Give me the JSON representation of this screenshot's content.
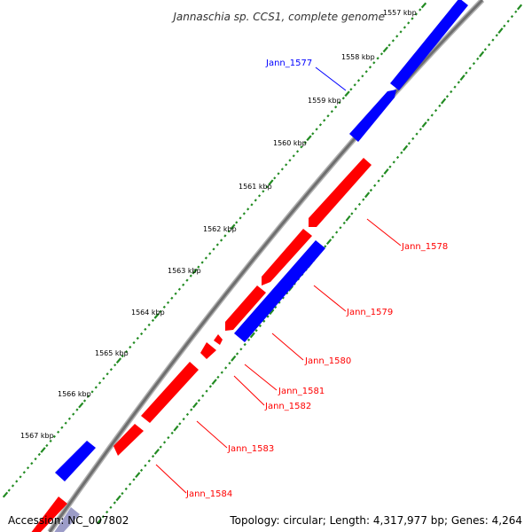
{
  "title": "Jannaschia sp. CCS1, complete genome",
  "colors": {
    "forward": "#ff0000",
    "reverse": "#0000ff",
    "backbone": "#808080",
    "ticks": "#228b22"
  },
  "ticks": [
    "1557 kbp",
    "1558 kbp",
    "1559 kbp",
    "1560 kbp",
    "1561 kbp",
    "1562 kbp",
    "1563 kbp",
    "1564 kbp",
    "1565 kbp",
    "1566 kbp",
    "1567 kbp"
  ],
  "genes": [
    {
      "name": "Jann_1577",
      "strand": "reverse"
    },
    {
      "name": "Jann_1578",
      "strand": "forward"
    },
    {
      "name": "Jann_1579",
      "strand": "forward"
    },
    {
      "name": "Jann_1580",
      "strand": "forward"
    },
    {
      "name": "Jann_1581",
      "strand": "forward"
    },
    {
      "name": "Jann_1582",
      "strand": "forward"
    },
    {
      "name": "Jann_1583",
      "strand": "forward"
    },
    {
      "name": "Jann_1584",
      "strand": "forward"
    }
  ],
  "footer": {
    "accession": "Accession: NC_007802",
    "topology": "Topology: circular; Length: 4,317,977 bp; Genes: 4,264"
  }
}
